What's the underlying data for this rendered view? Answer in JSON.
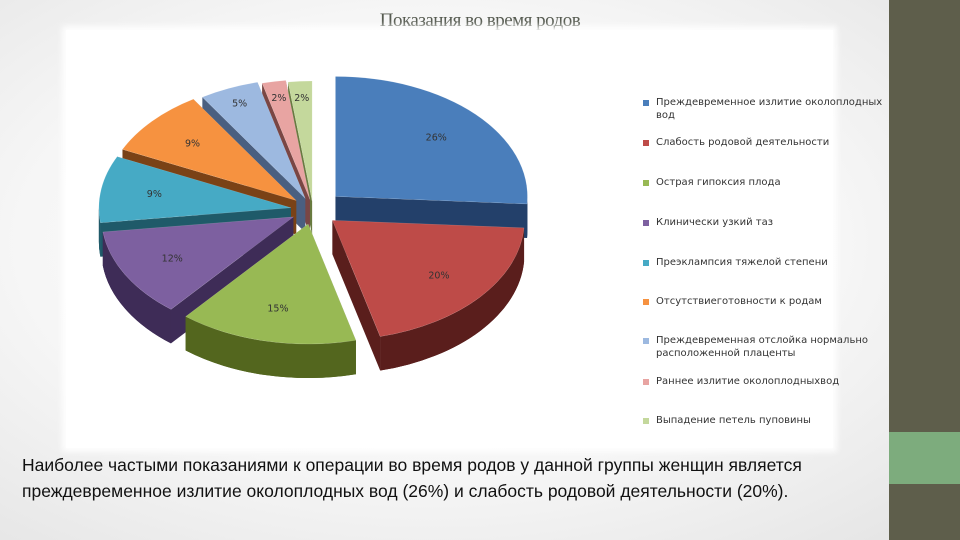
{
  "slide": {
    "title": "Показания во время родов",
    "caption": "Наиболее частыми показаниями к операции во время родов у данной группы женщин является преждевременное излитие околоплодных вод (26%)  и слабость родовой деятельности (20%)."
  },
  "chart_data": {
    "type": "pie",
    "title": "",
    "legend_position": "right",
    "categories": [
      "Преждевременное излитие околоплодных вод",
      "Слабость родовой деятельности",
      "Острая гипоксия плода",
      "Клинически узкий таз",
      "Преэклампсия тяжелой степени",
      "Отсутствие готовности к родам",
      "Преждевременная отслойка нормально расположенной плаценты",
      "Раннее излитие околоплодных вод",
      "Выпадение петель пуповины"
    ],
    "legend_labels": [
      "Преждевременное излитие околоплодных вод",
      "Слабость родовой деятельности",
      "Острая гипоксия плода",
      "Клинически узкий таз",
      "Преэклампсия тяжелой степени",
      "Отсутствиеготовности к родам",
      "Преждевременная отслойка нормально расположенной плаценты",
      "Раннее излитие околоплодныхвод",
      "Выпадение петель пуповины"
    ],
    "values": [
      26,
      20,
      15,
      12,
      9,
      9,
      5,
      2,
      2
    ],
    "data_labels": [
      "26%",
      "20%",
      "15%",
      "12%",
      "9%",
      "9%",
      "5%",
      "2%",
      "2%"
    ],
    "colors": [
      "#4a7ebb",
      "#be4b48",
      "#98b954",
      "#7d60a0",
      "#46aac5",
      "#f69240",
      "#9db9e0",
      "#e8a4a2",
      "#c4d89c"
    ],
    "side_colors": [
      "#23406a",
      "#5a1e1c",
      "#53661e",
      "#3e2c57",
      "#1f5a69",
      "#7a4216",
      "#4a5f80",
      "#7a4644",
      "#687a3f"
    ]
  }
}
